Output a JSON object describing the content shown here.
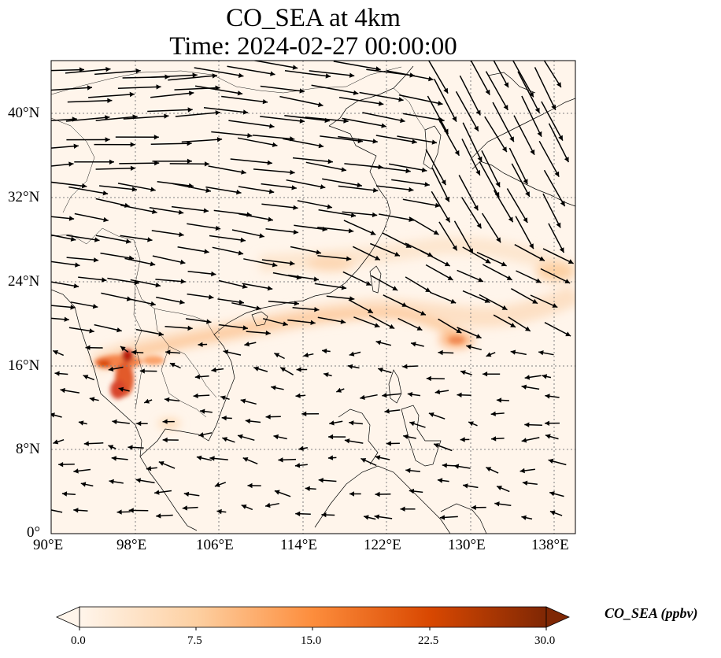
{
  "title": "CO_SEA at 4km",
  "subtitle": "Time: 2024-02-27 00:00:00",
  "lon_ticks": [
    "90°E",
    "98°E",
    "106°E",
    "114°E",
    "122°E",
    "130°E",
    "138°E"
  ],
  "lat_ticks": [
    "0°",
    "8°N",
    "16°N",
    "24°N",
    "32°N",
    "40°N"
  ],
  "extent": {
    "lon": [
      90,
      140
    ],
    "lat": [
      0,
      45
    ]
  },
  "colorbar": {
    "label": "CO_SEA (ppbv)",
    "ticks": [
      "0.0",
      "7.5",
      "15.0",
      "22.5",
      "30.0"
    ],
    "range": [
      0,
      30
    ],
    "colors": [
      "#fff5eb",
      "#fdd0a2",
      "#fd8d3c",
      "#d94801",
      "#7f2704"
    ]
  },
  "plume": {
    "source_region": "Myanmar / northern Thailand",
    "peak_lon": 97,
    "peak_lat": 16.5,
    "peak_value": 30,
    "secondary_peak_lon": 128,
    "secondary_peak_lat": 18.5,
    "secondary_peak_value": 14
  },
  "wind": {
    "description": "westerly flow north of ~18°N, weak easterlies to the south"
  }
}
